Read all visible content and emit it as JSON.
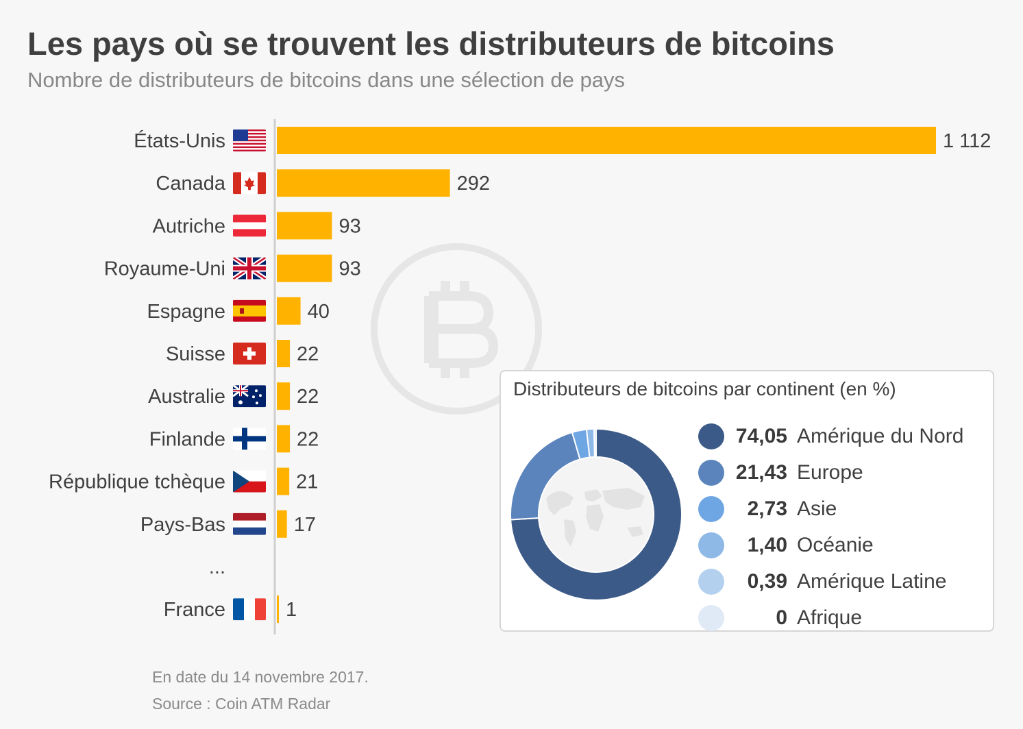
{
  "title": "Les pays où se trouvent les distributeurs de bitcoins",
  "subtitle": "Nombre de distributeurs de bitcoins dans une sélection de pays",
  "colors": {
    "bar": "#ffb200",
    "axis": "#cfcfcf",
    "watermark": "#e6e6e6"
  },
  "chart_data": [
    {
      "type": "bar",
      "orientation": "horizontal",
      "title": "Nombre de distributeurs de bitcoins dans une sélection de pays",
      "categories": [
        "États-Unis",
        "Canada",
        "Autriche",
        "Royaume-Uni",
        "Espagne",
        "Suisse",
        "Australie",
        "Finlande",
        "République tchèque",
        "Pays-Bas",
        "...",
        "France"
      ],
      "flags": [
        "us",
        "ca",
        "at",
        "gb",
        "es",
        "ch",
        "au",
        "fi",
        "cz",
        "nl",
        "",
        "fr"
      ],
      "values": [
        1112,
        292,
        93,
        93,
        40,
        22,
        22,
        22,
        21,
        17,
        null,
        1
      ],
      "value_labels": [
        "1 112",
        "292",
        "93",
        "93",
        "40",
        "22",
        "22",
        "22",
        "21",
        "17",
        "",
        "1"
      ],
      "xlim": [
        0,
        1112
      ],
      "xlabel": "",
      "ylabel": "",
      "grid": false
    },
    {
      "type": "pie",
      "variant": "donut",
      "title": "Distributeurs de bitcoins par continent (en %)",
      "categories": [
        "Amérique du Nord",
        "Europe",
        "Asie",
        "Océanie",
        "Amérique Latine",
        "Afrique"
      ],
      "values": [
        74.05,
        21.43,
        2.73,
        1.4,
        0.39,
        0
      ],
      "value_labels": [
        "74,05",
        "21,43",
        "2,73",
        "1,40",
        "0,39",
        "0"
      ],
      "colors": [
        "#3c5a87",
        "#5b84bd",
        "#6ea6e4",
        "#8eb8e6",
        "#b3d1ef",
        "#dfeaf6"
      ]
    }
  ],
  "footer": {
    "date": "En date du 14 novembre 2017.",
    "source": "Source : Coin ATM Radar"
  }
}
